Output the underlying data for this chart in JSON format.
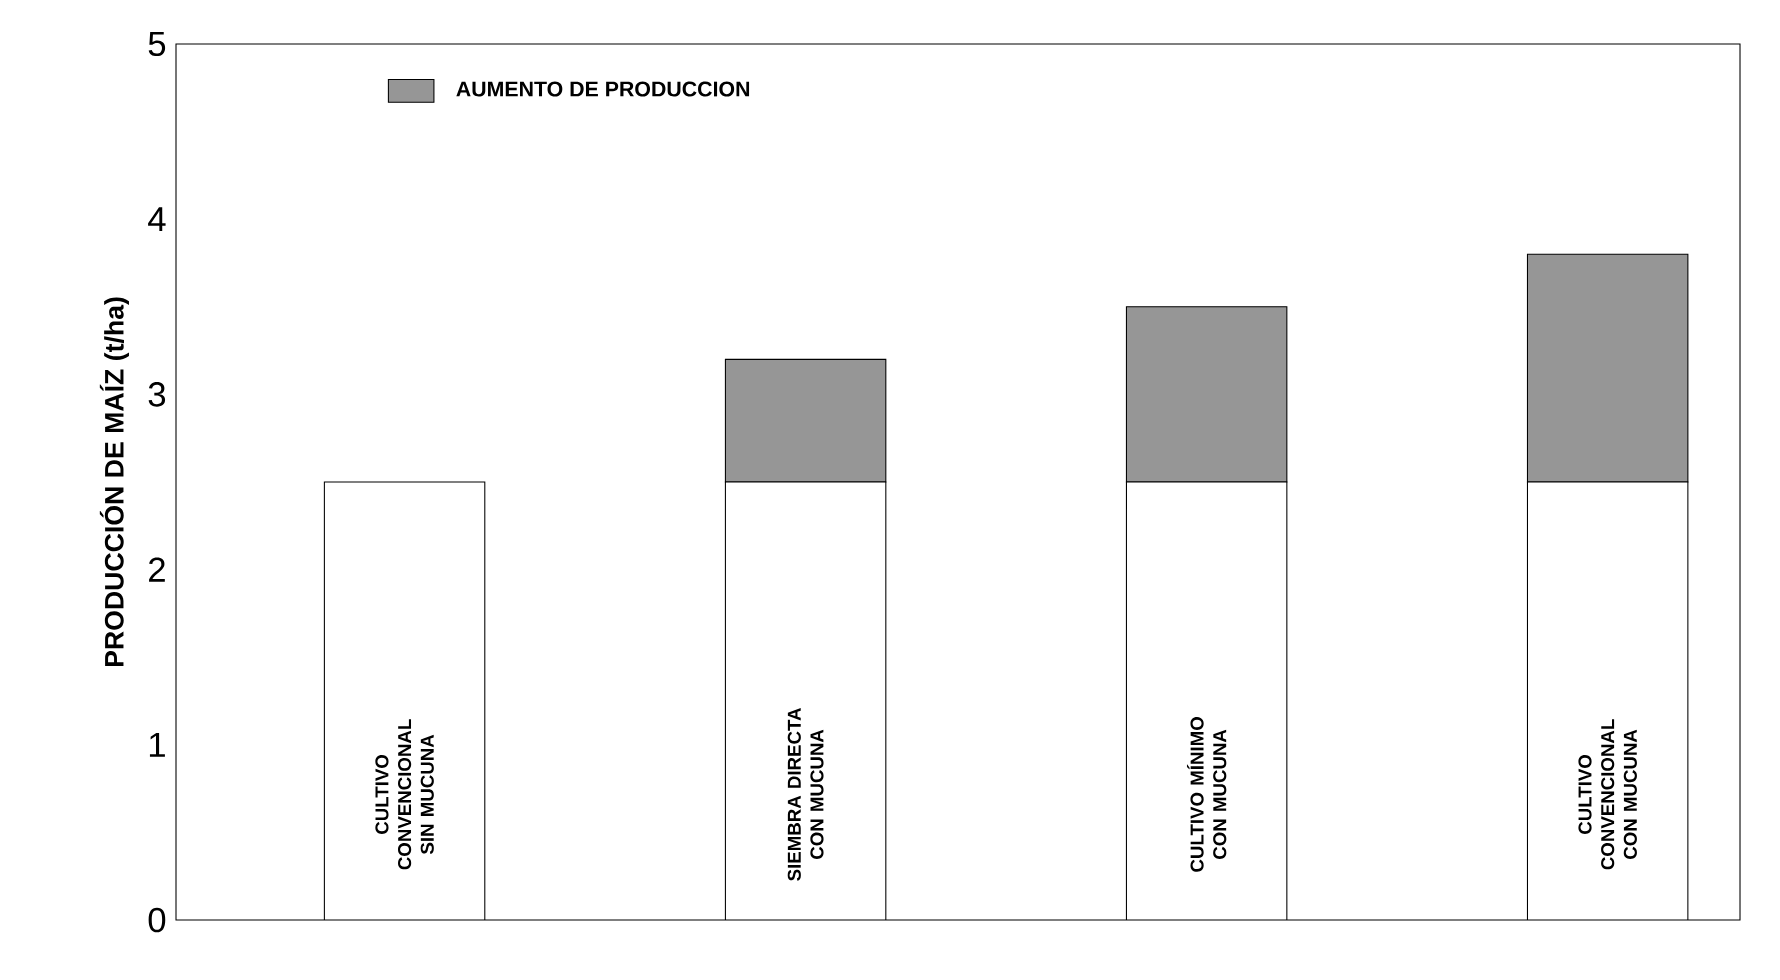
{
  "chart_data": {
    "type": "bar",
    "stacked": true,
    "ylabel": "PRODUCCIÓN DE MAÍZ (t/ha)",
    "categories": [
      "CULTIVO CONVENCIONAL SIN MUCUNA",
      "SIEMBRA DIRECTA CON MUCUNA",
      "CULTIVO MÍNIMO CON MUCUNA",
      "CULTIVO CONVENCIONAL CON MUCUNA"
    ],
    "series": [
      {
        "color": "#ffffff",
        "values": [
          2.5,
          2.5,
          2.5,
          2.5
        ]
      },
      {
        "name": "AUMENTO DE PRODUCCION",
        "color": "#969696",
        "values": [
          0,
          0.7,
          1.0,
          1.3
        ]
      }
    ],
    "ylim": [
      0,
      5
    ],
    "yticks": [
      0,
      1,
      2,
      3,
      4,
      5
    ],
    "grid": false,
    "legend": "top left"
  }
}
